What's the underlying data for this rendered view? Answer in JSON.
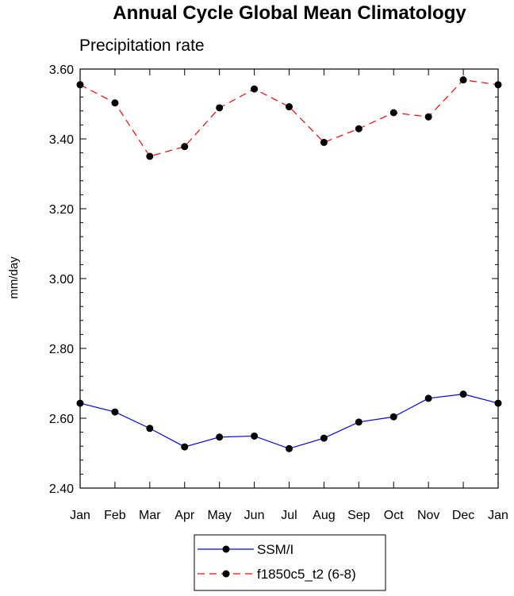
{
  "chart_data": {
    "type": "line",
    "title": "Annual Cycle Global Mean Climatology",
    "subtitle": "Precipitation rate",
    "ylabel": "mm/day",
    "xlabel": "",
    "categories": [
      "Jan",
      "Feb",
      "Mar",
      "Apr",
      "May",
      "Jun",
      "Jul",
      "Aug",
      "Sep",
      "Oct",
      "Nov",
      "Dec",
      "Jan"
    ],
    "ylim": [
      2.4,
      3.6
    ],
    "yticks": [
      "2.40",
      "2.60",
      "2.80",
      "3.00",
      "3.20",
      "3.40",
      "3.60"
    ],
    "ytick_values": [
      2.4,
      2.6,
      2.8,
      3.0,
      3.2,
      3.4,
      3.6
    ],
    "grid": false,
    "legend_position": "bottom-center",
    "series": [
      {
        "name": "SSM/I",
        "color": "#0000ff",
        "dash": "solid",
        "values": [
          2.643,
          2.618,
          2.571,
          2.518,
          2.546,
          2.549,
          2.513,
          2.543,
          2.589,
          2.604,
          2.657,
          2.669,
          2.643
        ]
      },
      {
        "name": "f1850c5_t2 (6-8)",
        "color": "#ff0000",
        "dash": "dashed",
        "values": [
          3.555,
          3.503,
          3.35,
          3.378,
          3.489,
          3.543,
          3.492,
          3.39,
          3.429,
          3.475,
          3.463,
          3.569,
          3.555
        ]
      }
    ]
  }
}
